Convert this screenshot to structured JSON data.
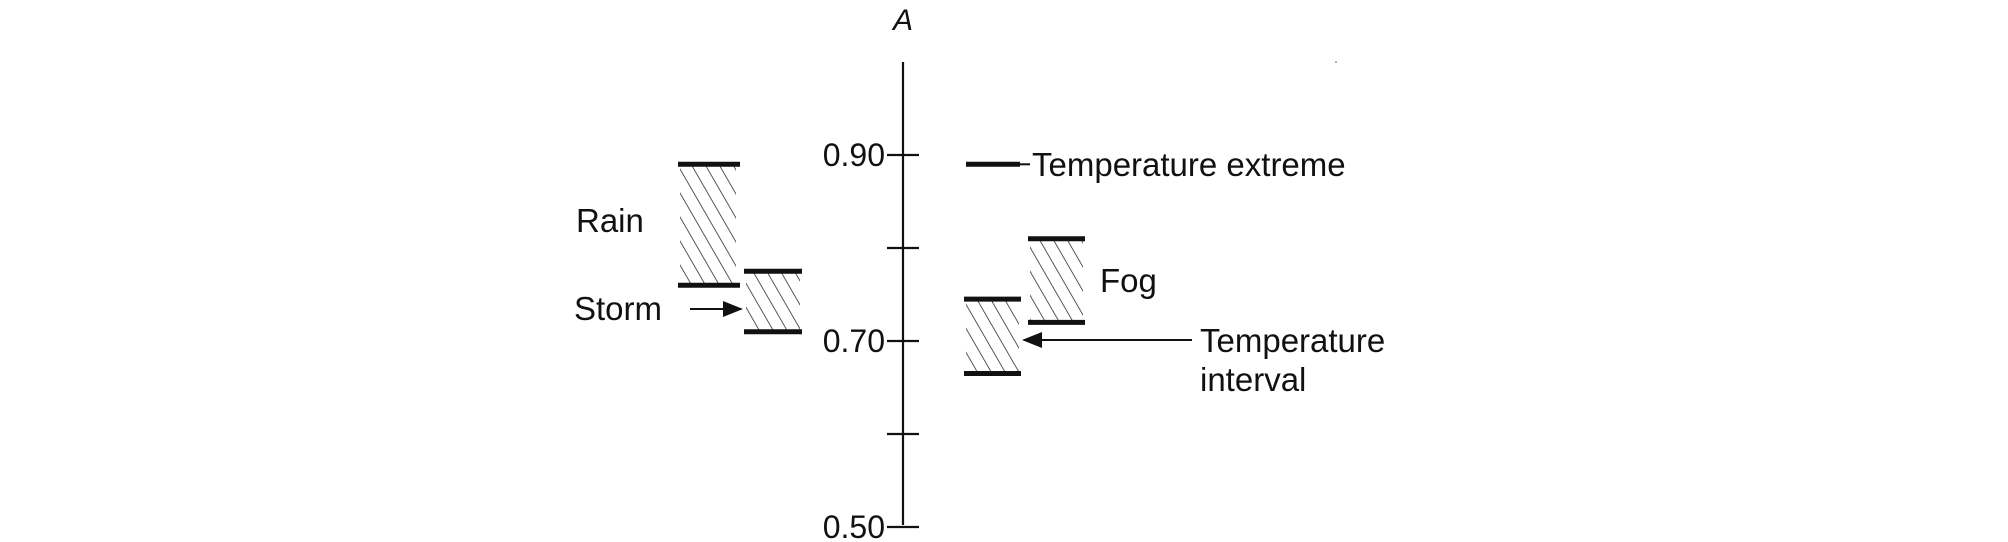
{
  "axis": {
    "title": "A",
    "ticks": [
      {
        "value": 0.9,
        "label": "0.90"
      },
      {
        "value": 0.8,
        "label": ""
      },
      {
        "value": 0.7,
        "label": "0.70"
      },
      {
        "value": 0.6,
        "label": ""
      },
      {
        "value": 0.5,
        "label": "0.50"
      }
    ],
    "range": [
      0.5,
      1.0
    ]
  },
  "intervals": [
    {
      "id": "rain",
      "label": "Rain",
      "low": 0.76,
      "high": 0.89
    },
    {
      "id": "storm",
      "label": "Storm",
      "low": 0.71,
      "high": 0.775
    },
    {
      "id": "temperature-interval",
      "label_line1": "Temperature",
      "label_line2": "interval",
      "low": 0.665,
      "high": 0.745
    },
    {
      "id": "fog",
      "label": "Fog",
      "low": 0.72,
      "high": 0.81
    }
  ],
  "extreme": {
    "label": "Temperature extreme",
    "value": 0.89
  },
  "colors": {
    "ink": "#111111",
    "background": "#ffffff"
  }
}
